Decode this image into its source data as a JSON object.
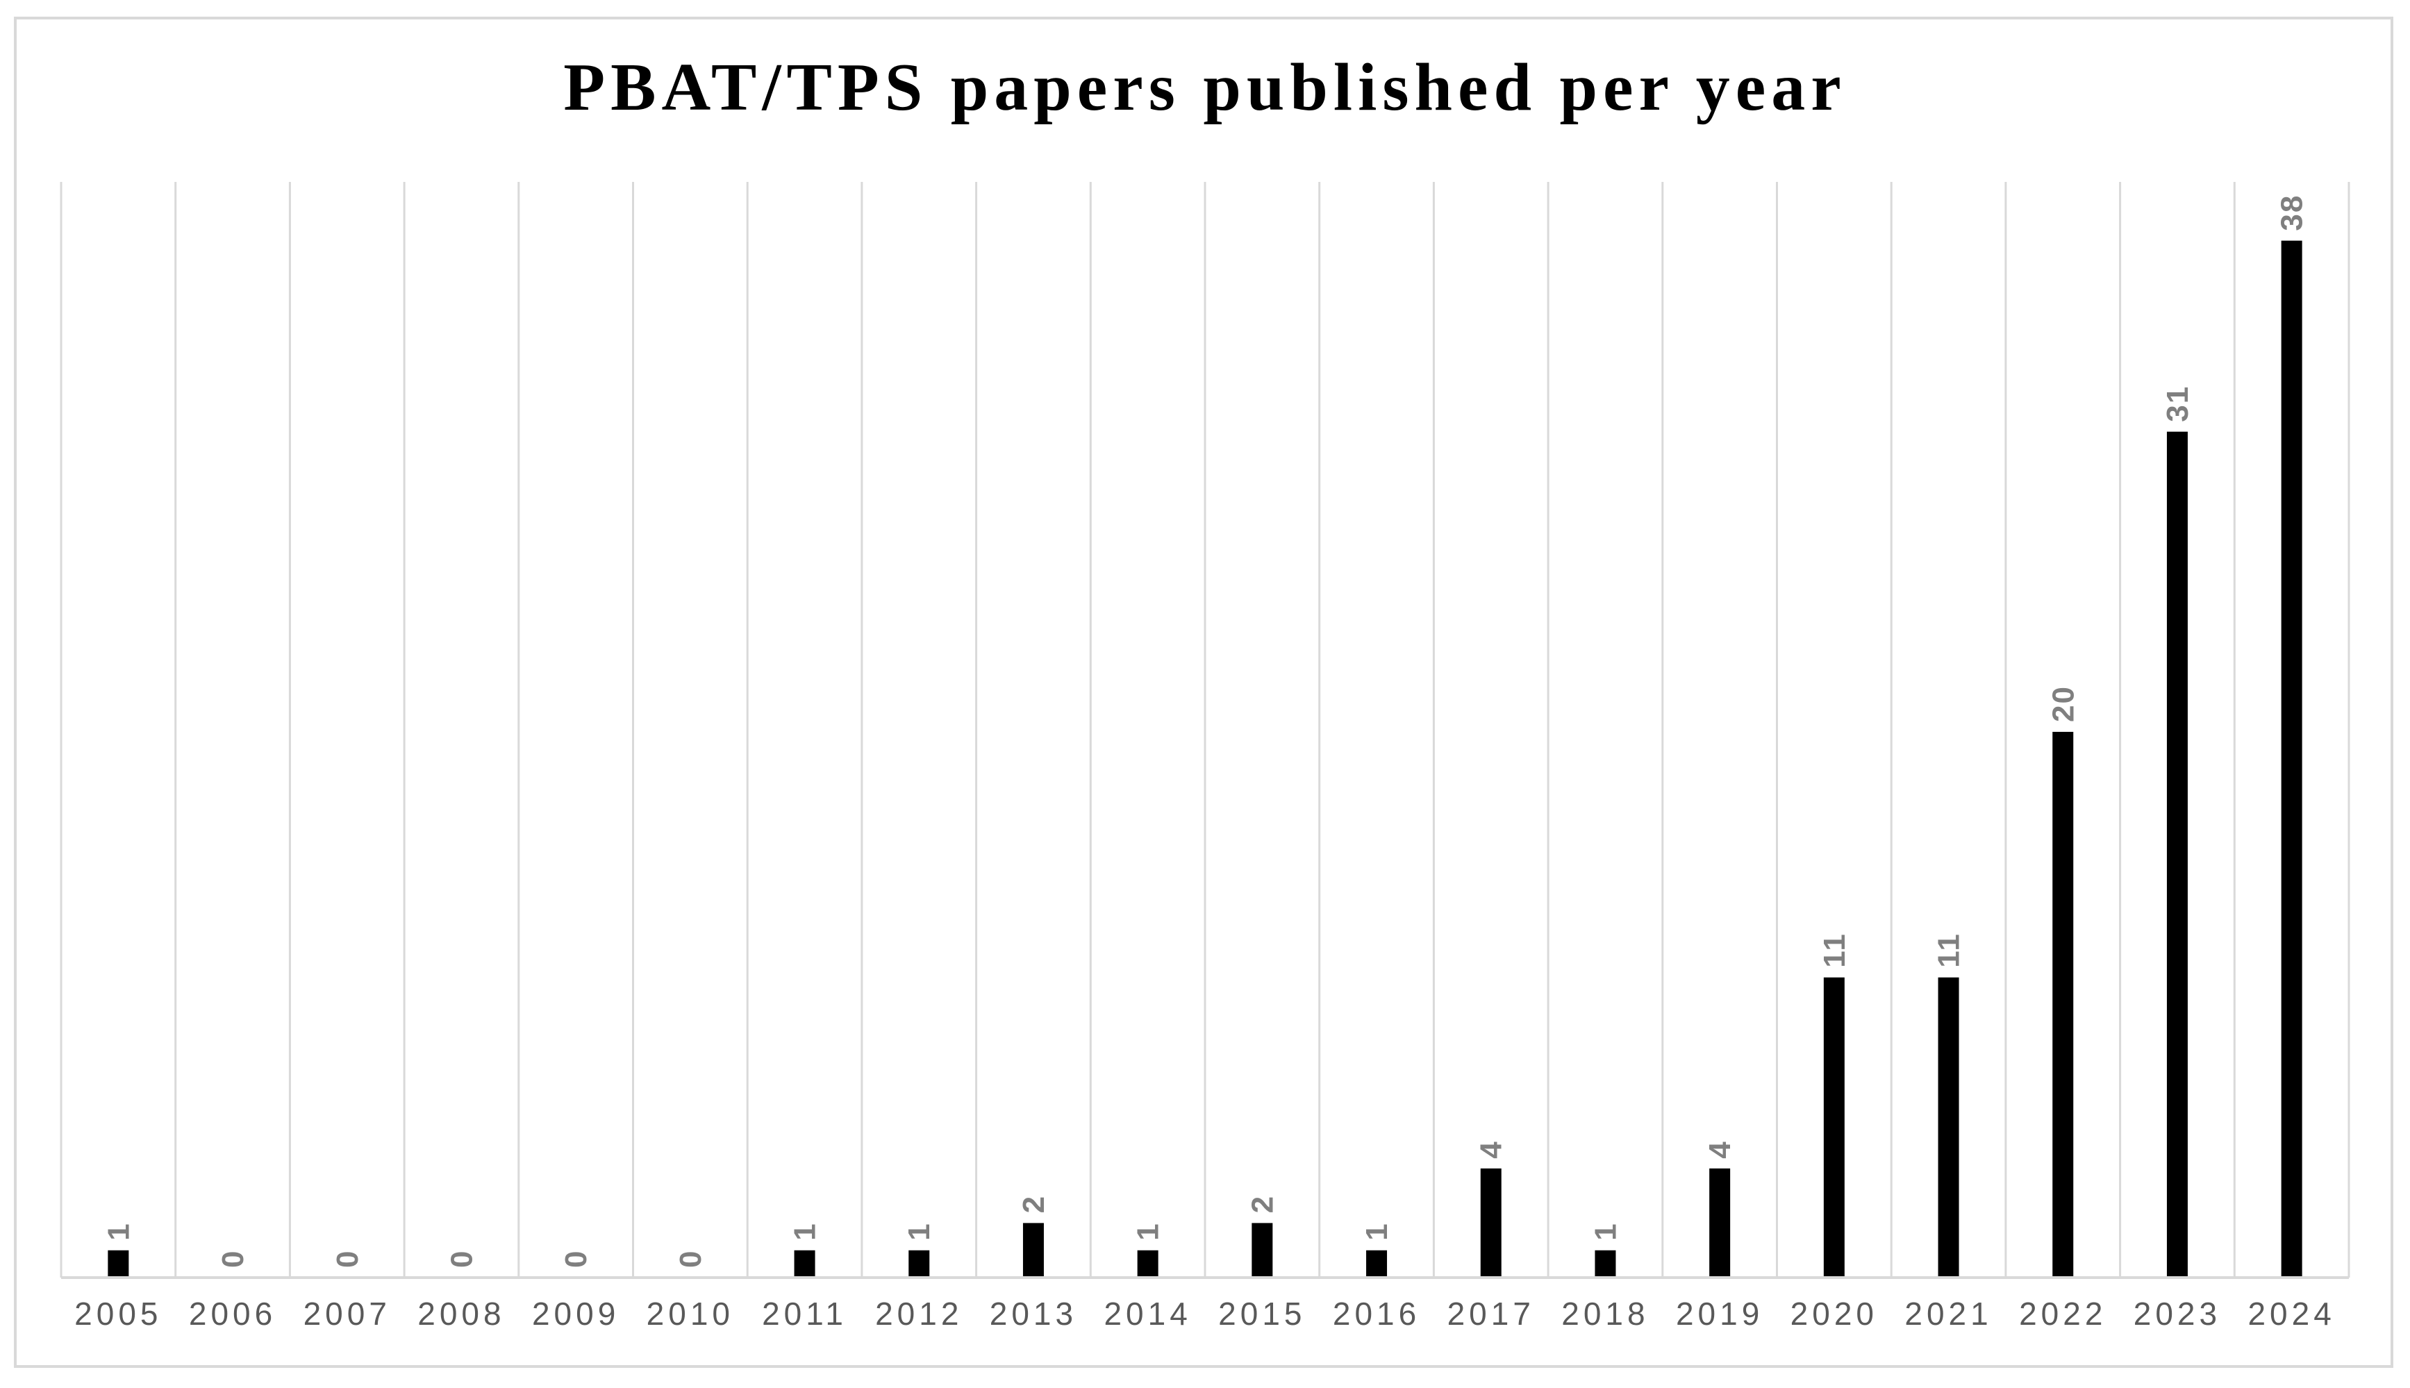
{
  "chart_data": {
    "type": "bar",
    "title": "PBAT/TPS papers published per year",
    "xlabel": "",
    "ylabel": "",
    "categories": [
      "2005",
      "2006",
      "2007",
      "2008",
      "2009",
      "2010",
      "2011",
      "2012",
      "2013",
      "2014",
      "2015",
      "2016",
      "2017",
      "2018",
      "2019",
      "2020",
      "2021",
      "2022",
      "2023",
      "2024"
    ],
    "values": [
      1,
      0,
      0,
      0,
      0,
      0,
      1,
      1,
      2,
      1,
      2,
      1,
      4,
      1,
      4,
      11,
      11,
      20,
      31,
      38
    ],
    "ylim": [
      0,
      40
    ],
    "grid": "vertical",
    "legend": "none",
    "data_labels": true,
    "colors": {
      "bar": "#000000",
      "data_label": "#7f7f7f",
      "tick_label": "#595959",
      "grid": "#d9d9d9"
    }
  }
}
